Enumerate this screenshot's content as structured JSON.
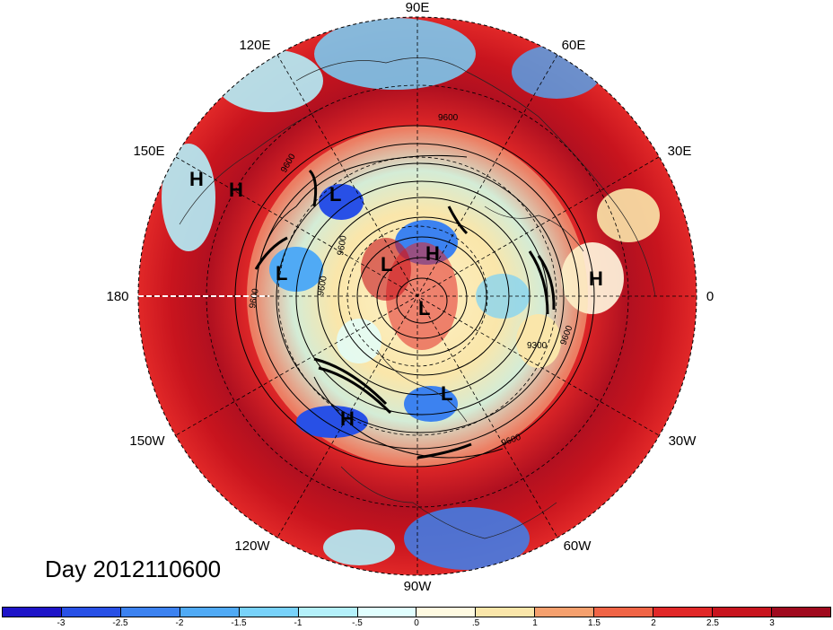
{
  "title": "Day 2012110600",
  "longitude_labels": {
    "e90": "90E",
    "e60": "60E",
    "e30": "30E",
    "zero": "0",
    "w30": "30W",
    "w60": "60W",
    "w90": "90W",
    "w120": "120W",
    "w150": "150W",
    "e180": "180",
    "e150": "150E",
    "e120": "120E"
  },
  "pressure_centers": [
    {
      "type": "H"
    },
    {
      "type": "H"
    },
    {
      "type": "H"
    },
    {
      "type": "H"
    },
    {
      "type": "H"
    },
    {
      "type": "L"
    },
    {
      "type": "L"
    },
    {
      "type": "L"
    },
    {
      "type": "L"
    },
    {
      "type": "L"
    }
  ],
  "contour_labels": {
    "c1": "9600",
    "c2": "9600",
    "c3": "9600",
    "c4": "9300",
    "c5": "9600",
    "c6": "9600",
    "c7": "9600",
    "c8": "9600"
  },
  "colorbar": {
    "colors": [
      "#1e14c8",
      "#2850e6",
      "#3c82f0",
      "#50aaf5",
      "#78d2fa",
      "#b4f0fa",
      "#e1ffff",
      "#fffae1",
      "#fae6aa",
      "#f5a06e",
      "#f06446",
      "#e12828",
      "#c8141e",
      "#a00a1e"
    ],
    "labels": [
      "-3",
      "-2.5",
      "-2",
      "-1.5",
      "-1",
      "-.5",
      "0",
      ".5",
      "1",
      "1.5",
      "2",
      "2.5",
      "3"
    ]
  }
}
